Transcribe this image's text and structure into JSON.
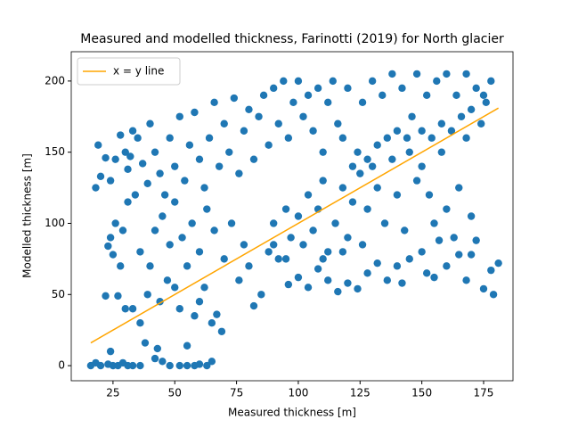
{
  "chart_data": {
    "type": "scatter",
    "title": "Measured and modelled thickness, Farinotti (2019) for North glacier",
    "xlabel": "Measured thickness [m]",
    "ylabel": "Modelled thickness [m]",
    "xlim": [
      8.1,
      186.9
    ],
    "ylim": [
      -10.6,
      220.6
    ],
    "xticks": [
      25,
      50,
      75,
      100,
      125,
      150,
      175
    ],
    "yticks": [
      0,
      50,
      100,
      150,
      200
    ],
    "legend": "upper left",
    "series": [
      {
        "type": "scatter",
        "color": "#1f77b4",
        "x": [
          16,
          18,
          20,
          23,
          25,
          27,
          29,
          31,
          33,
          36,
          42,
          45,
          48,
          52,
          55,
          58,
          60,
          63,
          65,
          24,
          38,
          43,
          55,
          19,
          22,
          24,
          26,
          28,
          30,
          31,
          33,
          35,
          37,
          39,
          40,
          42,
          44,
          46,
          48,
          50,
          52,
          54,
          56,
          58,
          60,
          62,
          64,
          66,
          68,
          70,
          72,
          74,
          76,
          78,
          80,
          82,
          84,
          86,
          88,
          90,
          92,
          94,
          96,
          98,
          100,
          102,
          104,
          106,
          108,
          110,
          112,
          114,
          116,
          118,
          120,
          122,
          124,
          126,
          128,
          130,
          132,
          134,
          136,
          138,
          140,
          142,
          144,
          146,
          148,
          150,
          152,
          154,
          156,
          158,
          160,
          162,
          164,
          166,
          168,
          170,
          172,
          175,
          178,
          176,
          174,
          36,
          30,
          25,
          28,
          24,
          22,
          27,
          33,
          39,
          44,
          47,
          50,
          52,
          55,
          58,
          60,
          62,
          65,
          67,
          69,
          36,
          40,
          42,
          45,
          48,
          50,
          53,
          57,
          60,
          63,
          66,
          70,
          73,
          76,
          78,
          80,
          82,
          85,
          88,
          90,
          92,
          95,
          97,
          100,
          102,
          104,
          106,
          108,
          110,
          112,
          115,
          118,
          120,
          122,
          125,
          128,
          130,
          132,
          135,
          138,
          140,
          143,
          145,
          148,
          150,
          153,
          155,
          158,
          160,
          163,
          165,
          168,
          170,
          96,
          100,
          104,
          108,
          112,
          116,
          120,
          124,
          128,
          132,
          136,
          140,
          145,
          150,
          155,
          160,
          165,
          168,
          172,
          175,
          178,
          179,
          181,
          90,
          95,
          110,
          118,
          126,
          142,
          152,
          157,
          170,
          23,
          26,
          29,
          31,
          34,
          32,
          20,
          18
        ],
        "y": [
          0,
          2,
          0,
          1,
          0,
          0,
          2,
          0,
          0,
          0,
          5,
          3,
          0,
          0,
          0,
          0,
          1,
          0,
          3,
          10,
          16,
          12,
          14,
          155,
          146,
          130,
          145,
          162,
          150,
          138,
          165,
          160,
          142,
          128,
          170,
          150,
          135,
          120,
          160,
          140,
          175,
          130,
          155,
          178,
          145,
          125,
          160,
          185,
          140,
          170,
          150,
          188,
          135,
          165,
          180,
          145,
          175,
          190,
          155,
          195,
          170,
          200,
          160,
          185,
          200,
          175,
          190,
          165,
          195,
          150,
          185,
          200,
          170,
          160,
          195,
          140,
          150,
          185,
          145,
          200,
          155,
          190,
          160,
          205,
          165,
          195,
          160,
          175,
          205,
          165,
          190,
          160,
          200,
          170,
          205,
          165,
          190,
          175,
          205,
          180,
          195,
          190,
          200,
          185,
          170,
          30,
          40,
          78,
          70,
          90,
          49,
          49,
          40,
          50,
          45,
          60,
          55,
          40,
          70,
          35,
          45,
          55,
          30,
          36,
          24,
          80,
          70,
          95,
          105,
          85,
          115,
          90,
          100,
          80,
          110,
          95,
          75,
          100,
          60,
          85,
          70,
          42,
          50,
          80,
          100,
          75,
          110,
          90,
          105,
          85,
          120,
          95,
          110,
          130,
          80,
          100,
          125,
          90,
          115,
          135,
          110,
          140,
          125,
          100,
          145,
          120,
          95,
          150,
          130,
          140,
          120,
          100,
          150,
          110,
          90,
          125,
          160,
          105,
          57,
          62,
          55,
          68,
          60,
          52,
          58,
          54,
          65,
          72,
          60,
          70,
          75,
          80,
          62,
          70,
          78,
          60,
          88,
          54,
          67,
          50,
          72,
          85,
          75,
          75,
          80,
          85,
          58,
          65,
          88,
          78,
          84,
          100,
          95,
          115,
          120,
          147,
          133,
          125
        ]
      },
      {
        "type": "line",
        "name": "x = y line",
        "color": "#ffa500",
        "x": [
          16,
          181
        ],
        "y": [
          16,
          181
        ]
      }
    ]
  }
}
